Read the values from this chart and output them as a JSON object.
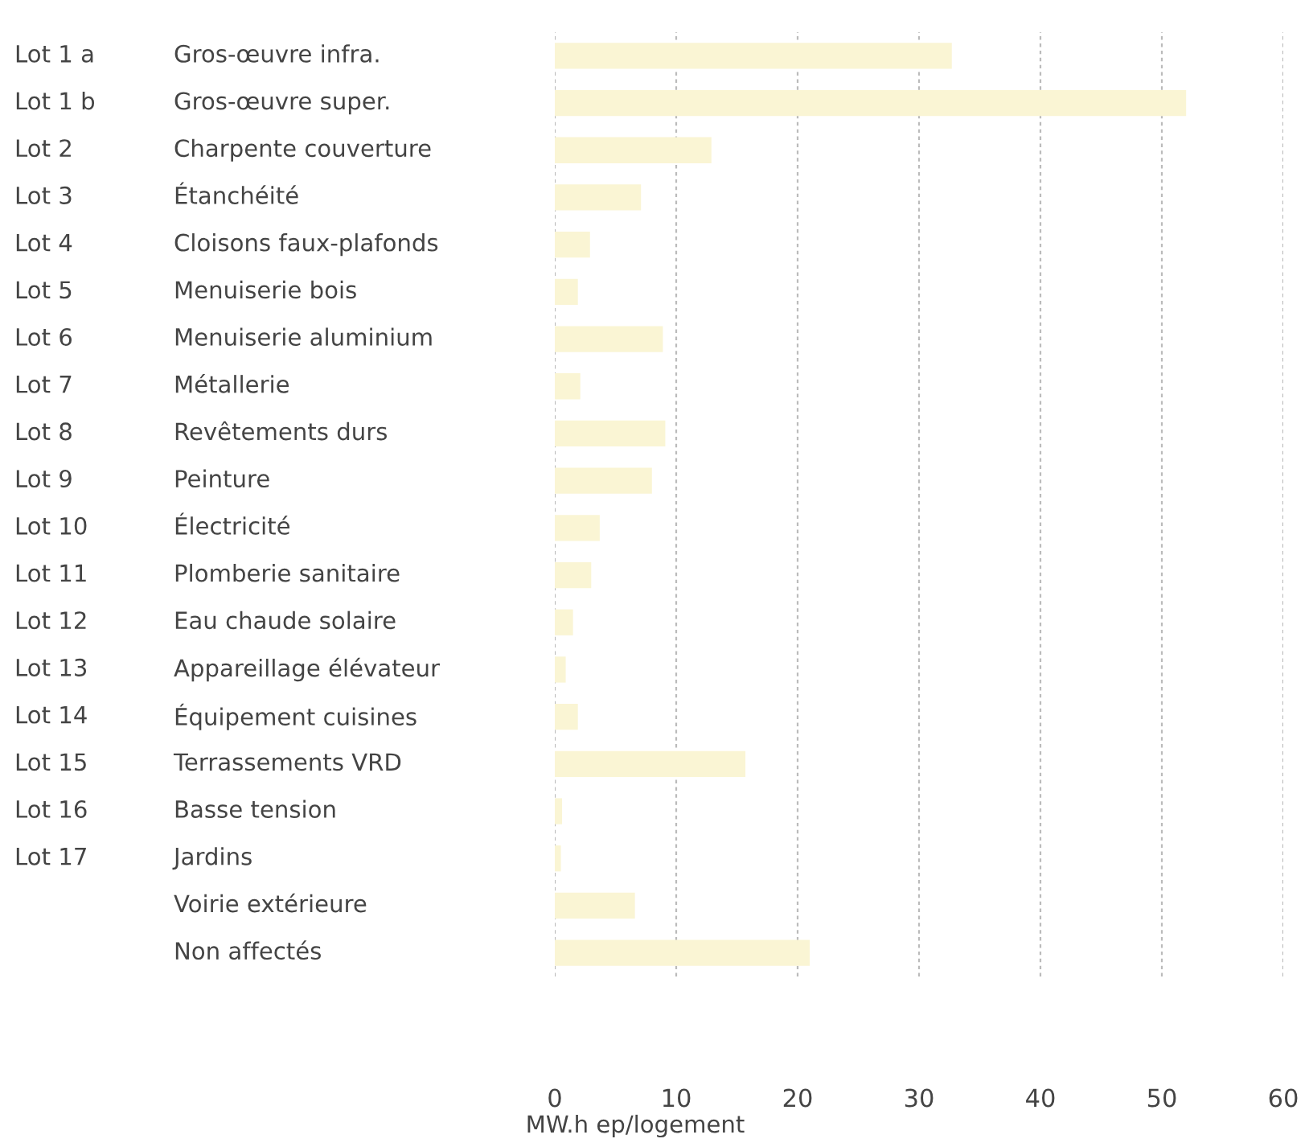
{
  "chart_data": {
    "type": "bar",
    "orientation": "horizontal",
    "categories": [
      "Gros-œuvre infra.",
      "Gros-œuvre super.",
      "Charpente couverture",
      "Étanchéité",
      "Cloisons faux-plafonds",
      "Menuiserie bois",
      "Menuiserie aluminium",
      "Métallerie",
      "Revêtements durs",
      "Peinture",
      "Électricité",
      "Plomberie sanitaire",
      "Eau chaude solaire",
      "Appareillage élévateur",
      "Équipement cuisines",
      "Terrassements VRD",
      "Basse tension",
      "Jardins",
      "Voirie extérieure",
      "Non affectés"
    ],
    "y2_categories": [
      "Lot 1 a",
      "Lot 1 b",
      "Lot 2",
      "Lot 3",
      "Lot 4",
      "Lot 5",
      "Lot 6",
      "Lot 7",
      "Lot 8",
      "Lot 9",
      "Lot 10",
      "Lot 11",
      "Lot 12",
      "Lot 13",
      "Lot 14",
      "Lot 15",
      "Lot 16",
      "Lot 17",
      null,
      null
    ],
    "values": [
      32.7,
      52.0,
      12.9,
      7.1,
      2.9,
      1.9,
      8.9,
      2.1,
      9.1,
      8.0,
      3.7,
      3.0,
      1.5,
      0.9,
      1.9,
      15.7,
      0.6,
      0.5,
      6.6,
      21.0
    ],
    "color": "#faf5d4",
    "xlim": [
      0,
      60
    ],
    "xticks": [
      0,
      10,
      20,
      30,
      40,
      50,
      60
    ],
    "xlabel": "MW.h ep/logement",
    "grid": "x"
  }
}
